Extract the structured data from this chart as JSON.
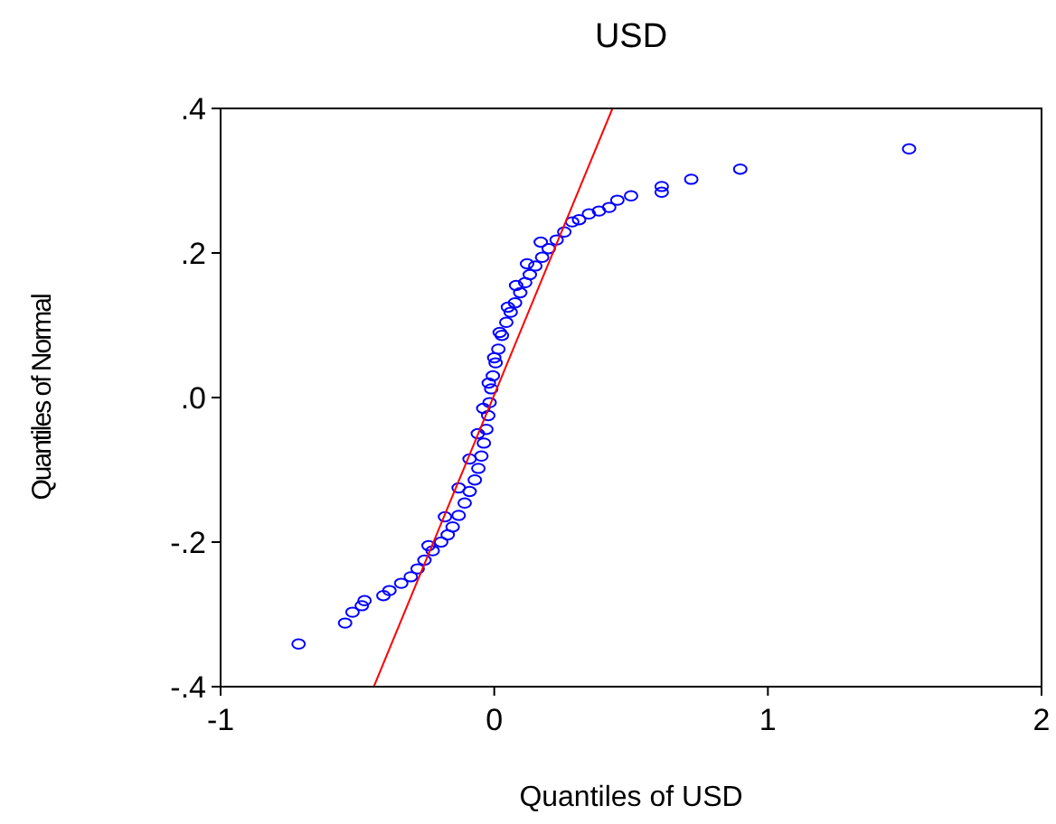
{
  "chart_data": {
    "type": "scatter",
    "title": "USD",
    "xlabel": "Quantiles of USD",
    "ylabel": "Quantiles of Normal",
    "xlim": [
      -1,
      2
    ],
    "xticks": [
      -1,
      0,
      1,
      2
    ],
    "ylim": [
      -0.4,
      0.4
    ],
    "yticks": [
      {
        "value": -0.4,
        "label": "-.4"
      },
      {
        "value": -0.2,
        "label": "-.2"
      },
      {
        "value": 0,
        "label": ".0"
      },
      {
        "value": 0.2,
        "label": ".2"
      },
      {
        "value": 0.4,
        "label": ".4"
      }
    ],
    "grid": false,
    "series": [
      {
        "marker": "circle",
        "color": "#0000ff",
        "x": [
          -0.715,
          -0.545,
          -0.518,
          -0.484,
          -0.474,
          -0.405,
          -0.383,
          -0.34,
          -0.305,
          -0.28,
          -0.255,
          -0.225,
          -0.194,
          -0.17,
          -0.152,
          -0.13,
          -0.108,
          -0.09,
          -0.071,
          -0.058,
          -0.047,
          -0.038,
          -0.029,
          -0.022,
          -0.017,
          -0.011,
          -0.005,
          0.005,
          0.015,
          0.028,
          0.044,
          0.06,
          0.076,
          0.095,
          0.113,
          0.13,
          0.15,
          0.175,
          0.199,
          0.228,
          0.256,
          0.285,
          0.31,
          0.346,
          0.383,
          0.42,
          0.45,
          0.5,
          0.612,
          0.612,
          0.72,
          0.899,
          1.516,
          -0.24,
          -0.18,
          -0.13,
          -0.09,
          -0.06,
          -0.04,
          -0.02,
          0.0,
          0.02,
          0.05,
          0.08,
          0.12,
          0.17
        ],
        "values": [
          -0.341,
          -0.312,
          -0.297,
          -0.288,
          -0.281,
          -0.274,
          -0.267,
          -0.257,
          -0.248,
          -0.237,
          -0.225,
          -0.212,
          -0.2,
          -0.19,
          -0.179,
          -0.163,
          -0.146,
          -0.13,
          -0.114,
          -0.098,
          -0.081,
          -0.063,
          -0.044,
          -0.025,
          -0.007,
          0.012,
          0.03,
          0.048,
          0.067,
          0.086,
          0.104,
          0.118,
          0.131,
          0.145,
          0.159,
          0.17,
          0.182,
          0.194,
          0.206,
          0.218,
          0.229,
          0.243,
          0.246,
          0.254,
          0.258,
          0.263,
          0.273,
          0.279,
          0.284,
          0.292,
          0.302,
          0.316,
          0.344,
          -0.205,
          -0.165,
          -0.125,
          -0.085,
          -0.05,
          -0.015,
          0.02,
          0.055,
          0.09,
          0.125,
          0.155,
          0.185,
          0.215
        ]
      },
      {
        "type": "line",
        "marker": "none",
        "color": "#ff0000",
        "x": [
          -0.44,
          0.432
        ],
        "values": [
          -0.4,
          0.4
        ]
      }
    ]
  }
}
